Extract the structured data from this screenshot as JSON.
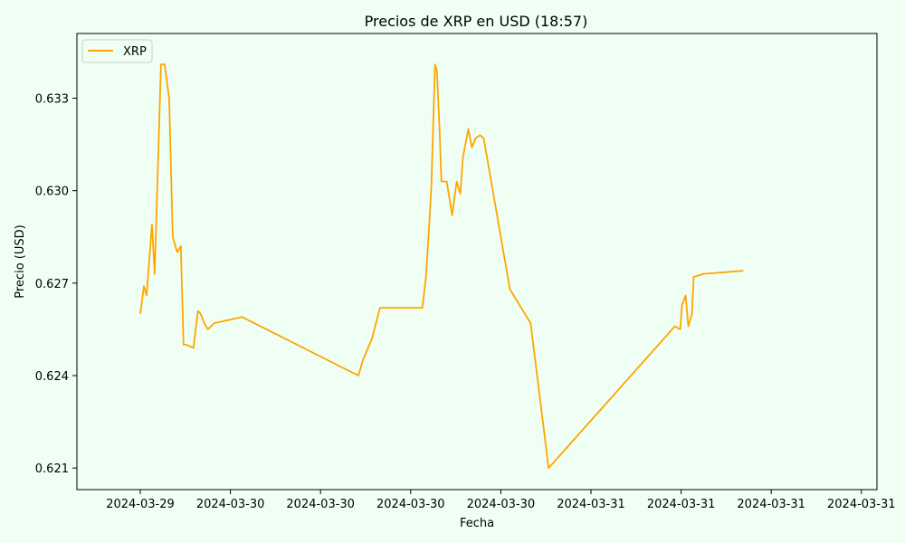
{
  "chart_data": {
    "type": "line",
    "title": "Precios de XRP en USD (18:57)",
    "xlabel": "Fecha",
    "ylabel": "Precio (USD)",
    "x_tick_labels": [
      "2024-03-29",
      "2024-03-30",
      "2024-03-30",
      "2024-03-30",
      "2024-03-30",
      "2024-03-31",
      "2024-03-31",
      "2024-03-31",
      "2024-03-31"
    ],
    "y_ticks": [
      0.621,
      0.624,
      0.627,
      0.63,
      0.633
    ],
    "y_tick_labels": [
      "0.621",
      "0.624",
      "0.627",
      "0.630",
      "0.633"
    ],
    "ylim": [
      0.6203,
      0.6351
    ],
    "legend": {
      "position": "top-left"
    },
    "grid": false,
    "series": [
      {
        "name": "XRP",
        "color": "#ffa500",
        "x": [
          0.0,
          0.04,
          0.07,
          0.13,
          0.16,
          0.23,
          0.27,
          0.32,
          0.36,
          0.41,
          0.45,
          0.48,
          0.51,
          0.59,
          0.64,
          0.67,
          0.71,
          0.75,
          0.82,
          1.13,
          2.42,
          2.47,
          2.57,
          2.66,
          3.13,
          3.17,
          3.21,
          3.23,
          3.27,
          3.29,
          3.32,
          3.34,
          3.4,
          3.46,
          3.51,
          3.55,
          3.58,
          3.64,
          3.68,
          3.72,
          3.77,
          3.81,
          4.1,
          4.33,
          4.53,
          5.84,
          5.93,
          5.99,
          6.01,
          6.05,
          6.08,
          6.12,
          6.14,
          6.25,
          6.69
        ],
        "y": [
          0.626,
          0.6269,
          0.6266,
          0.6289,
          0.6273,
          0.6341,
          0.6341,
          0.633,
          0.6285,
          0.628,
          0.6282,
          0.625,
          0.625,
          0.6249,
          0.6261,
          0.626,
          0.6257,
          0.6255,
          0.6257,
          0.6259,
          0.624,
          0.6245,
          0.6252,
          0.6262,
          0.6262,
          0.6272,
          0.6291,
          0.6302,
          0.6341,
          0.6339,
          0.632,
          0.6303,
          0.6303,
          0.6292,
          0.6303,
          0.6299,
          0.6311,
          0.632,
          0.6314,
          0.6317,
          0.6318,
          0.6317,
          0.6268,
          0.6257,
          0.621,
          0.6253,
          0.6256,
          0.6255,
          0.6263,
          0.6266,
          0.6256,
          0.626,
          0.6272,
          0.6273,
          0.6274
        ]
      }
    ]
  }
}
